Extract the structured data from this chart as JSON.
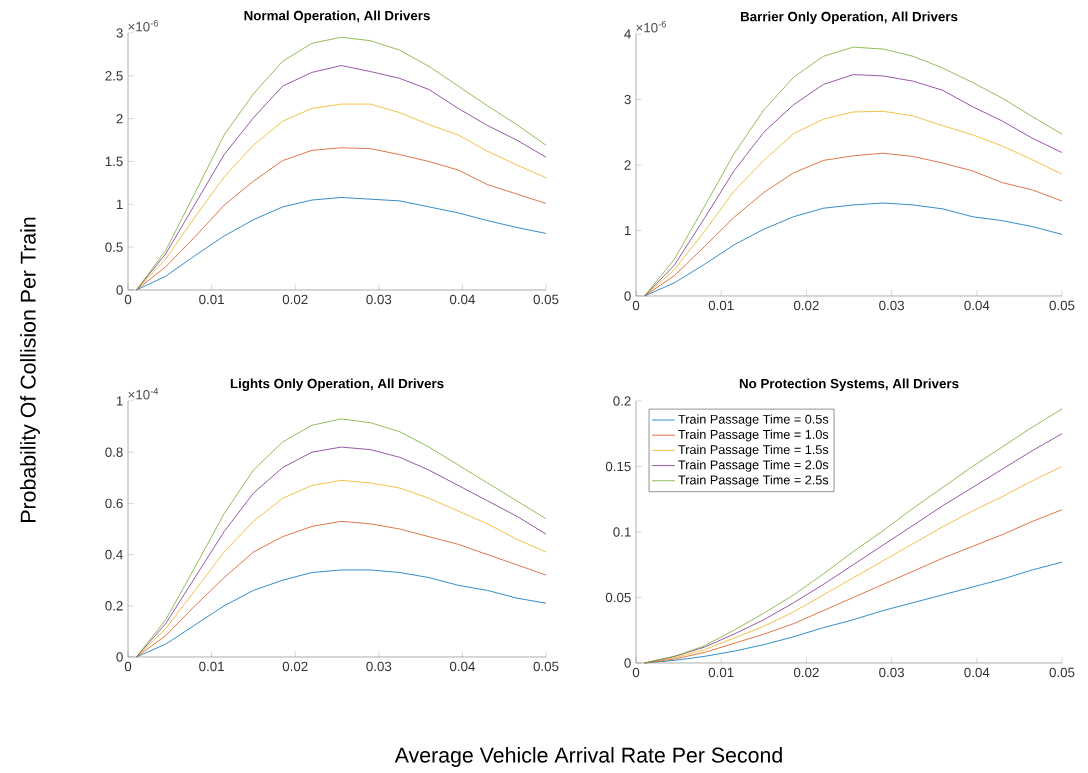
{
  "chart_data": [
    {
      "type": "line",
      "title": "Normal Operation, All Drivers",
      "ylabel": "Probability Of Collision Per Train",
      "annotations": [
        "×10$^{-6}$"
      ],
      "line_style": "solid",
      "x": [
        0.001,
        0.0045,
        0.008,
        0.0115,
        0.015,
        0.0185,
        0.022,
        0.0255,
        0.029,
        0.0325,
        0.036,
        0.0395,
        0.043,
        0.0465,
        0.05
      ],
      "xlim": [
        0,
        0.05
      ],
      "xticks": [
        0,
        0.01,
        0.02,
        0.03,
        0.04,
        0.05
      ],
      "ylim": [
        0,
        3
      ],
      "yticks": [
        0,
        0.5,
        1,
        1.5,
        2,
        2.5,
        3
      ],
      "series": [
        {
          "color": "#0072bd",
          "values": [
            0,
            0.16,
            0.4,
            0.63,
            0.82,
            0.97,
            1.05,
            1.08,
            1.06,
            1.04,
            0.97,
            0.9,
            0.81,
            0.73,
            0.66
          ]
        },
        {
          "color": "#d95319",
          "values": [
            0,
            0.27,
            0.62,
            0.99,
            1.27,
            1.51,
            1.63,
            1.66,
            1.65,
            1.58,
            1.5,
            1.4,
            1.23,
            1.12,
            1.01
          ]
        },
        {
          "color": "#edb120",
          "values": [
            0,
            0.36,
            0.85,
            1.32,
            1.69,
            1.97,
            2.12,
            2.17,
            2.17,
            2.07,
            1.93,
            1.81,
            1.62,
            1.46,
            1.31
          ]
        },
        {
          "color": "#7e2f8e",
          "values": [
            0,
            0.42,
            1.0,
            1.58,
            2.01,
            2.38,
            2.54,
            2.62,
            2.55,
            2.47,
            2.34,
            2.12,
            1.92,
            1.75,
            1.55
          ]
        },
        {
          "color": "#77ac30",
          "values": [
            0,
            0.46,
            1.13,
            1.81,
            2.29,
            2.67,
            2.88,
            2.95,
            2.91,
            2.8,
            2.61,
            2.38,
            2.15,
            1.93,
            1.69
          ]
        }
      ]
    },
    {
      "type": "line",
      "title": "Barrier Only Operation, All Drivers",
      "annotations": [
        "×10$^{-6}$"
      ],
      "line_style": "solid",
      "x": [
        0.001,
        0.0045,
        0.008,
        0.0115,
        0.015,
        0.0185,
        0.022,
        0.0255,
        0.029,
        0.0325,
        0.036,
        0.0395,
        0.043,
        0.0465,
        0.05
      ],
      "xlim": [
        0,
        0.05
      ],
      "xticks": [
        0,
        0.01,
        0.02,
        0.03,
        0.04,
        0.05
      ],
      "ylim": [
        0,
        4
      ],
      "yticks": [
        0,
        1,
        2,
        3,
        4
      ],
      "series": [
        {
          "color": "#0072bd",
          "values": [
            0,
            0.2,
            0.48,
            0.78,
            1.02,
            1.21,
            1.34,
            1.39,
            1.42,
            1.39,
            1.33,
            1.21,
            1.15,
            1.06,
            0.94
          ]
        },
        {
          "color": "#d95319",
          "values": [
            0,
            0.31,
            0.75,
            1.2,
            1.58,
            1.88,
            2.07,
            2.14,
            2.18,
            2.13,
            2.03,
            1.91,
            1.73,
            1.62,
            1.45
          ]
        },
        {
          "color": "#edb120",
          "values": [
            0,
            0.4,
            0.98,
            1.6,
            2.07,
            2.48,
            2.7,
            2.81,
            2.82,
            2.75,
            2.6,
            2.46,
            2.29,
            2.08,
            1.86
          ]
        },
        {
          "color": "#7e2f8e",
          "values": [
            0,
            0.47,
            1.18,
            1.91,
            2.5,
            2.92,
            3.23,
            3.38,
            3.36,
            3.28,
            3.14,
            2.89,
            2.67,
            2.41,
            2.19
          ]
        },
        {
          "color": "#77ac30",
          "values": [
            0,
            0.56,
            1.36,
            2.17,
            2.84,
            3.34,
            3.66,
            3.8,
            3.77,
            3.66,
            3.48,
            3.26,
            3.02,
            2.74,
            2.47
          ]
        }
      ]
    },
    {
      "type": "line",
      "title": "Lights Only Operation, All Drivers",
      "xlabel": "Average Vehicle Arrival Rate Per Second",
      "annotations": [
        "×10$^{-4}$"
      ],
      "line_style": "solid",
      "x": [
        0.001,
        0.0045,
        0.008,
        0.0115,
        0.015,
        0.0185,
        0.022,
        0.0255,
        0.029,
        0.0325,
        0.036,
        0.0395,
        0.043,
        0.0465,
        0.05
      ],
      "xlim": [
        0,
        0.05
      ],
      "xticks": [
        0,
        0.01,
        0.02,
        0.03,
        0.04,
        0.05
      ],
      "ylim": [
        0,
        1
      ],
      "yticks": [
        0,
        0.2,
        0.4,
        0.6,
        0.8,
        1
      ],
      "series": [
        {
          "color": "#0072bd",
          "values": [
            0,
            0.05,
            0.125,
            0.2,
            0.26,
            0.3,
            0.33,
            0.34,
            0.34,
            0.33,
            0.31,
            0.28,
            0.26,
            0.23,
            0.21
          ]
        },
        {
          "color": "#d95319",
          "values": [
            0,
            0.083,
            0.2,
            0.31,
            0.41,
            0.47,
            0.51,
            0.53,
            0.52,
            0.5,
            0.47,
            0.44,
            0.4,
            0.36,
            0.32
          ]
        },
        {
          "color": "#edb120",
          "values": [
            0,
            0.11,
            0.26,
            0.41,
            0.53,
            0.62,
            0.67,
            0.69,
            0.68,
            0.66,
            0.62,
            0.57,
            0.52,
            0.46,
            0.41
          ]
        },
        {
          "color": "#7e2f8e",
          "values": [
            0,
            0.13,
            0.31,
            0.49,
            0.64,
            0.74,
            0.8,
            0.82,
            0.81,
            0.78,
            0.73,
            0.67,
            0.61,
            0.55,
            0.48
          ]
        },
        {
          "color": "#77ac30",
          "values": [
            0,
            0.145,
            0.35,
            0.56,
            0.73,
            0.84,
            0.905,
            0.93,
            0.915,
            0.88,
            0.82,
            0.75,
            0.68,
            0.61,
            0.54
          ]
        }
      ]
    },
    {
      "type": "line",
      "title": "No Protection Systems, All Drivers",
      "legend": "top left",
      "line_style": "solid",
      "x": [
        0.001,
        0.0045,
        0.008,
        0.0115,
        0.015,
        0.0185,
        0.022,
        0.0255,
        0.029,
        0.0325,
        0.036,
        0.0395,
        0.043,
        0.0465,
        0.05
      ],
      "xlim": [
        0,
        0.05
      ],
      "xticks": [
        0,
        0.01,
        0.02,
        0.03,
        0.04,
        0.05
      ],
      "ylim": [
        0,
        0.2
      ],
      "yticks": [
        0,
        0.05,
        0.1,
        0.15,
        0.2
      ],
      "series": [
        {
          "name": "Train Passage Time = 0.5s",
          "color": "#0072bd",
          "values": [
            0,
            0.002,
            0.005,
            0.009,
            0.014,
            0.02,
            0.027,
            0.033,
            0.04,
            0.046,
            0.052,
            0.058,
            0.064,
            0.071,
            0.077
          ]
        },
        {
          "name": "Train Passage Time = 1.0s",
          "color": "#d95319",
          "values": [
            0,
            0.003,
            0.008,
            0.015,
            0.022,
            0.03,
            0.04,
            0.05,
            0.06,
            0.07,
            0.08,
            0.089,
            0.098,
            0.108,
            0.117
          ]
        },
        {
          "name": "Train Passage Time = 1.5s",
          "color": "#edb120",
          "values": [
            0,
            0.004,
            0.01,
            0.019,
            0.028,
            0.039,
            0.052,
            0.065,
            0.078,
            0.091,
            0.104,
            0.116,
            0.127,
            0.139,
            0.15
          ]
        },
        {
          "name": "Train Passage Time = 2.0s",
          "color": "#7e2f8e",
          "values": [
            0,
            0.005,
            0.012,
            0.022,
            0.033,
            0.046,
            0.06,
            0.075,
            0.09,
            0.105,
            0.12,
            0.134,
            0.148,
            0.162,
            0.175
          ]
        },
        {
          "name": "Train Passage Time = 2.5s",
          "color": "#77ac30",
          "values": [
            0,
            0.005,
            0.013,
            0.025,
            0.038,
            0.052,
            0.068,
            0.085,
            0.101,
            0.118,
            0.134,
            0.15,
            0.165,
            0.18,
            0.194
          ]
        }
      ]
    }
  ]
}
